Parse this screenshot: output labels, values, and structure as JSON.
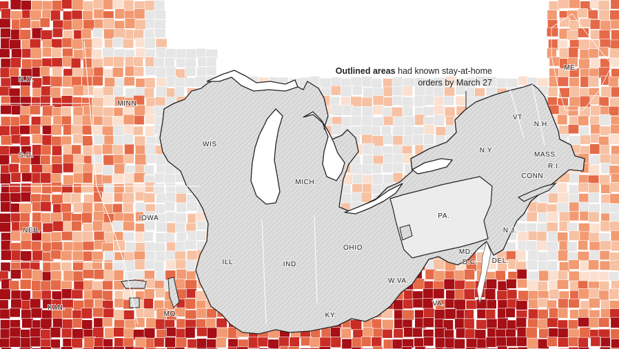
{
  "legend": {
    "bold": "Outlined areas",
    "rest_line1": " had known stay-at-home",
    "line2": "orders by March 27"
  },
  "state_labels": [
    "N.D.",
    "MINN.",
    "S.D.",
    "WIS.",
    "MICH.",
    "NEB.",
    "IOWA",
    "ILL.",
    "IND.",
    "OHIO",
    "PA.",
    "N.Y.",
    "VT.",
    "N.H.",
    "ME.",
    "MASS.",
    "R.I.",
    "CONN.",
    "N.J.",
    "MD.",
    "D.C.",
    "DEL.",
    "W.VA.",
    "VA.",
    "KY.",
    "KAN.",
    "MO."
  ],
  "colors": {
    "scale": [
      "#fbe0d0",
      "#f7c1a3",
      "#f29a72",
      "#e56a48",
      "#c92d25",
      "#a50f15"
    ],
    "no_data": "#e6e6e6",
    "outlined_fill": "#dcdcdc",
    "outline": "#222222",
    "water": "#ffffff"
  }
}
